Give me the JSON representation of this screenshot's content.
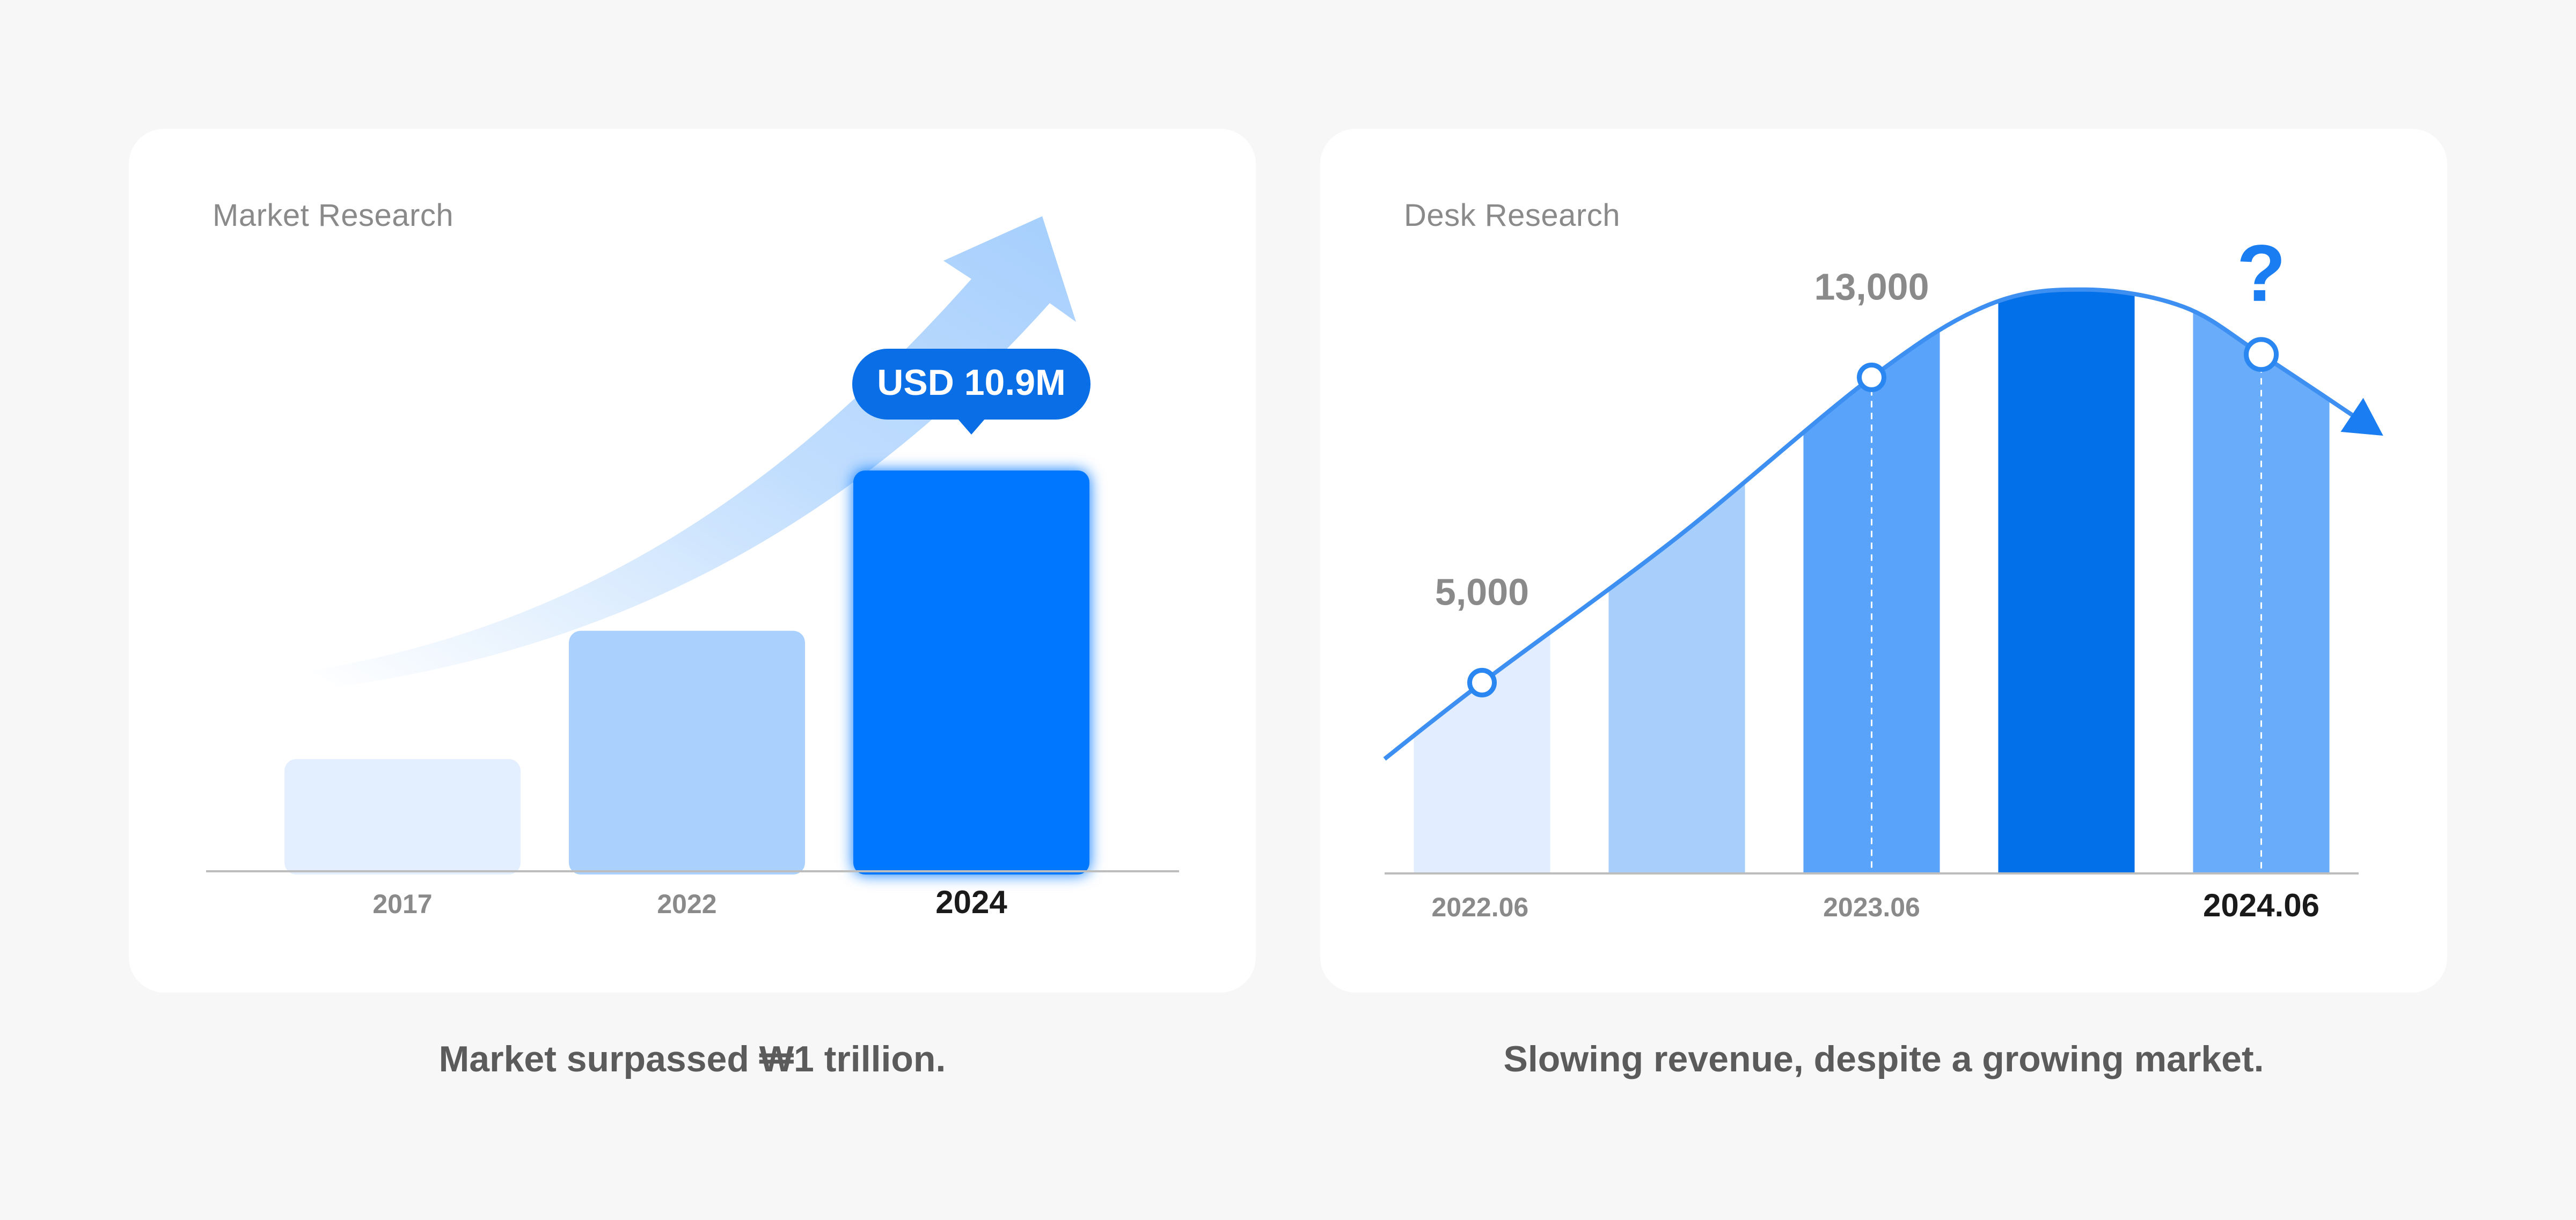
{
  "colors": {
    "background": "#f7f7f7",
    "card": "#ffffff",
    "accent": "#0077ff",
    "axis": "#bdbdbd",
    "muted_text": "#8a8a8a"
  },
  "captions": {
    "left": "Market surpassed ₩1 trillion.",
    "right": "Slowing revenue, despite a growing market."
  },
  "chart_data": [
    {
      "type": "bar",
      "title": "Market Research",
      "categories": [
        "2017",
        "2022",
        "2024"
      ],
      "values": [
        28,
        60,
        100
      ],
      "ylim": [
        0,
        100
      ],
      "highlight_index": 2,
      "bar_colors": [
        "#e3efff",
        "#aad0fd",
        "#0077ff"
      ],
      "callout": "USD 10.9M",
      "trend_arrow": true,
      "grid": false,
      "legend": "none"
    },
    {
      "type": "area",
      "title": "Desk Research",
      "x_ticks": [
        "2022.06",
        "2023.06",
        "2024.06"
      ],
      "highlight_tick_index": 2,
      "curve": [
        {
          "x": 0.0,
          "y": 3000
        },
        {
          "x": 0.1,
          "y": 5000
        },
        {
          "x": 0.3,
          "y": 8800
        },
        {
          "x": 0.5,
          "y": 13000
        },
        {
          "x": 0.62,
          "y": 14900
        },
        {
          "x": 0.72,
          "y": 15300
        },
        {
          "x": 0.82,
          "y": 14850
        },
        {
          "x": 0.9,
          "y": 13600
        },
        {
          "x": 1.0,
          "y": 11900
        }
      ],
      "bands": [
        {
          "x0": 0.03,
          "x1": 0.17,
          "color": "#e2eeff"
        },
        {
          "x0": 0.23,
          "x1": 0.37,
          "color": "#a8cefc"
        },
        {
          "x0": 0.43,
          "x1": 0.57,
          "color": "#59a3fb"
        },
        {
          "x0": 0.63,
          "x1": 0.77,
          "color": "#0270e8"
        },
        {
          "x0": 0.83,
          "x1": 0.97,
          "color": "#68acfa"
        }
      ],
      "markers": [
        {
          "x": 0.1,
          "y": 5000,
          "label": "5,000"
        },
        {
          "x": 0.5,
          "y": 13000,
          "label": "13,000"
        },
        {
          "x": 0.9,
          "y": 13600,
          "label": "?"
        }
      ],
      "ylim": [
        0,
        16000
      ],
      "grid": false,
      "legend": "none"
    }
  ]
}
